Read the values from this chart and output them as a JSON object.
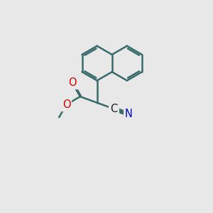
{
  "background_color": "#e8e8e8",
  "bond_color": "#3a6b6b",
  "bond_width": 1.8,
  "atom_colors": {
    "C": "#1a1a1a",
    "N": "#0000cc",
    "O": "#cc0000"
  },
  "font_size": 10.5,
  "figsize": [
    3.0,
    3.0
  ],
  "dpi": 100,
  "bl": 0.82
}
